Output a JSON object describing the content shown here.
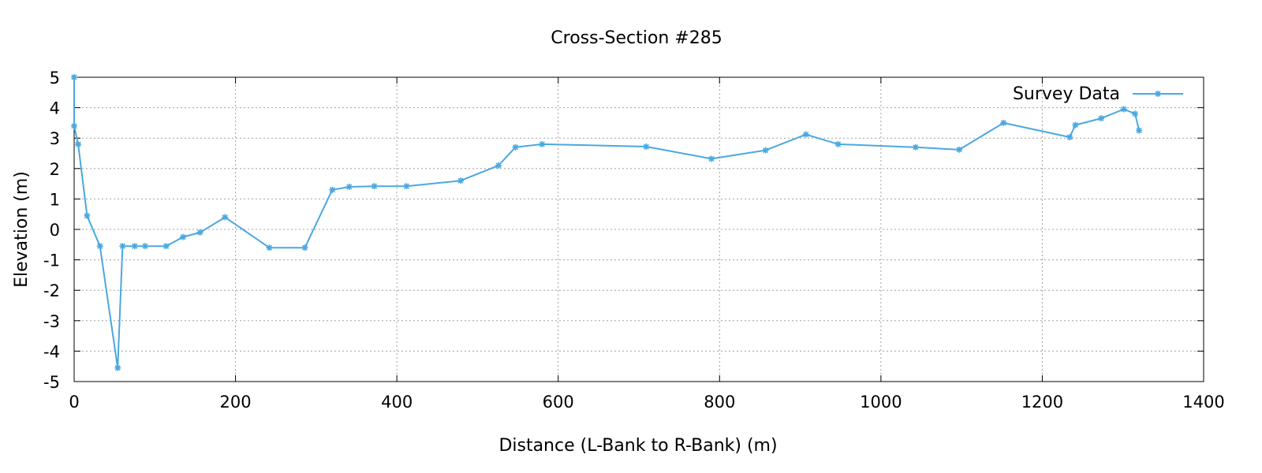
{
  "chart_data": {
    "type": "line",
    "title": "Cross-Section #285",
    "xlabel": "Distance (L-Bank to R-Bank) (m)",
    "ylabel": "Elevation (m)",
    "xlim": [
      0,
      1400
    ],
    "ylim": [
      -5,
      5
    ],
    "xticks": [
      0,
      200,
      400,
      600,
      800,
      1000,
      1200,
      1400
    ],
    "yticks": [
      -5,
      -4,
      -3,
      -2,
      -1,
      0,
      1,
      2,
      3,
      4,
      5
    ],
    "grid": true,
    "legend_position": "top-right",
    "series": [
      {
        "name": "Survey Data",
        "color": "#4aa8e0",
        "marker": "asterisk",
        "x": [
          0,
          0,
          5,
          16,
          32,
          54,
          60,
          75,
          88,
          114,
          135,
          156,
          187,
          242,
          286,
          320,
          341,
          372,
          412,
          479,
          526,
          547,
          580,
          709,
          790,
          857,
          907,
          947,
          1043,
          1097,
          1152,
          1234,
          1241,
          1273,
          1301,
          1315,
          1320
        ],
        "y": [
          5.0,
          3.4,
          2.8,
          0.45,
          -0.55,
          -4.55,
          -0.55,
          -0.55,
          -0.55,
          -0.55,
          -0.25,
          -0.1,
          0.4,
          -0.6,
          -0.6,
          1.3,
          1.4,
          1.42,
          1.42,
          1.6,
          2.1,
          2.7,
          2.8,
          2.72,
          2.32,
          2.6,
          3.12,
          2.8,
          2.7,
          2.62,
          3.5,
          3.03,
          3.43,
          3.65,
          3.95,
          3.8,
          3.25
        ]
      }
    ]
  }
}
